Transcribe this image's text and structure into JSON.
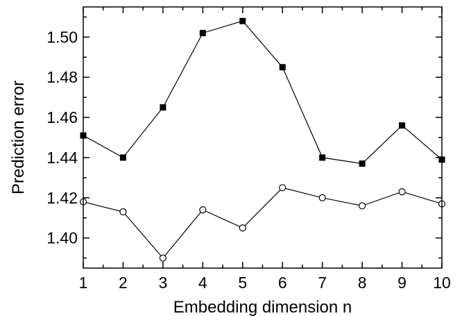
{
  "chart_data": {
    "type": "line",
    "xlabel": "Embedding dimension n",
    "ylabel": "Prediction error",
    "xlim": [
      1,
      10
    ],
    "ylim": [
      1.385,
      1.515
    ],
    "x_ticks": [
      1,
      2,
      3,
      4,
      5,
      6,
      7,
      8,
      9,
      10
    ],
    "y_ticks": [
      1.4,
      1.42,
      1.44,
      1.46,
      1.48,
      1.5
    ],
    "y_tick_labels": [
      "1.40",
      "1.42",
      "1.44",
      "1.46",
      "1.48",
      "1.50"
    ],
    "grid": false,
    "x": [
      1,
      2,
      3,
      4,
      5,
      6,
      7,
      8,
      9,
      10
    ],
    "series": [
      {
        "marker": "filled-square",
        "color": "#000000",
        "values": [
          1.451,
          1.44,
          1.465,
          1.502,
          1.508,
          1.485,
          1.44,
          1.437,
          1.456,
          1.439
        ]
      },
      {
        "marker": "open-circle",
        "color": "#000000",
        "values": [
          1.418,
          1.413,
          1.39,
          1.414,
          1.405,
          1.425,
          1.42,
          1.416,
          1.423,
          1.417
        ]
      }
    ]
  }
}
